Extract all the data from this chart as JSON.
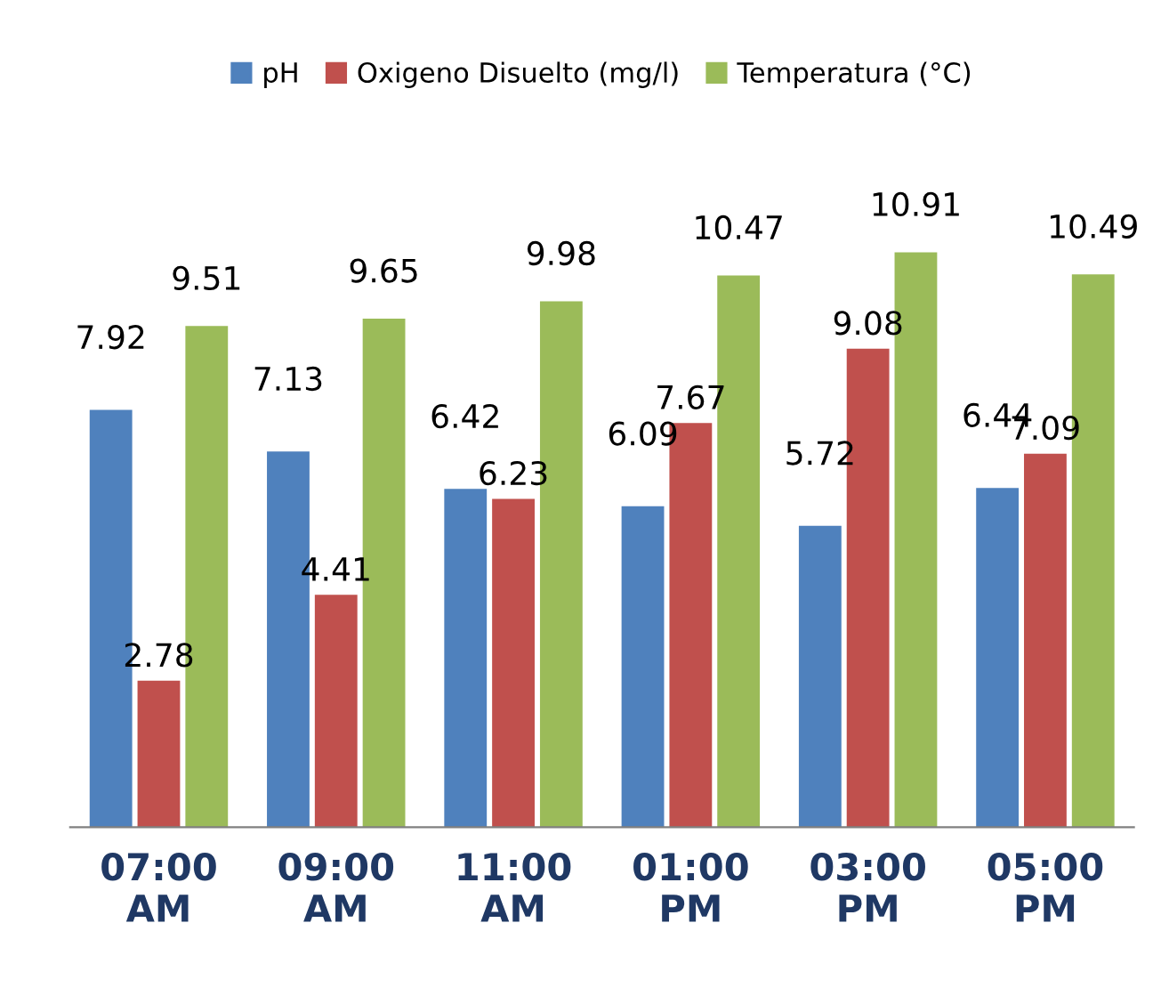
{
  "chart_data": {
    "type": "bar",
    "categories": [
      "07:00\nAM",
      "09:00\nAM",
      "11:00\nAM",
      "01:00\nPM",
      "03:00\nPM",
      "05:00\nPM"
    ],
    "series": [
      {
        "name": "pH",
        "color": "#4f81bd",
        "values": [
          7.92,
          7.13,
          6.42,
          6.09,
          5.72,
          6.44
        ]
      },
      {
        "name": "Oxigeno Disuelto (mg/l)",
        "color": "#c0504d",
        "values": [
          2.78,
          4.41,
          6.23,
          7.67,
          9.08,
          7.09
        ]
      },
      {
        "name": "Temperatura (°C)",
        "color": "#9bbb59",
        "values": [
          9.51,
          9.65,
          9.98,
          10.47,
          10.91,
          10.49
        ]
      }
    ],
    "data_labels": true,
    "legend": "top",
    "grid": false
  }
}
